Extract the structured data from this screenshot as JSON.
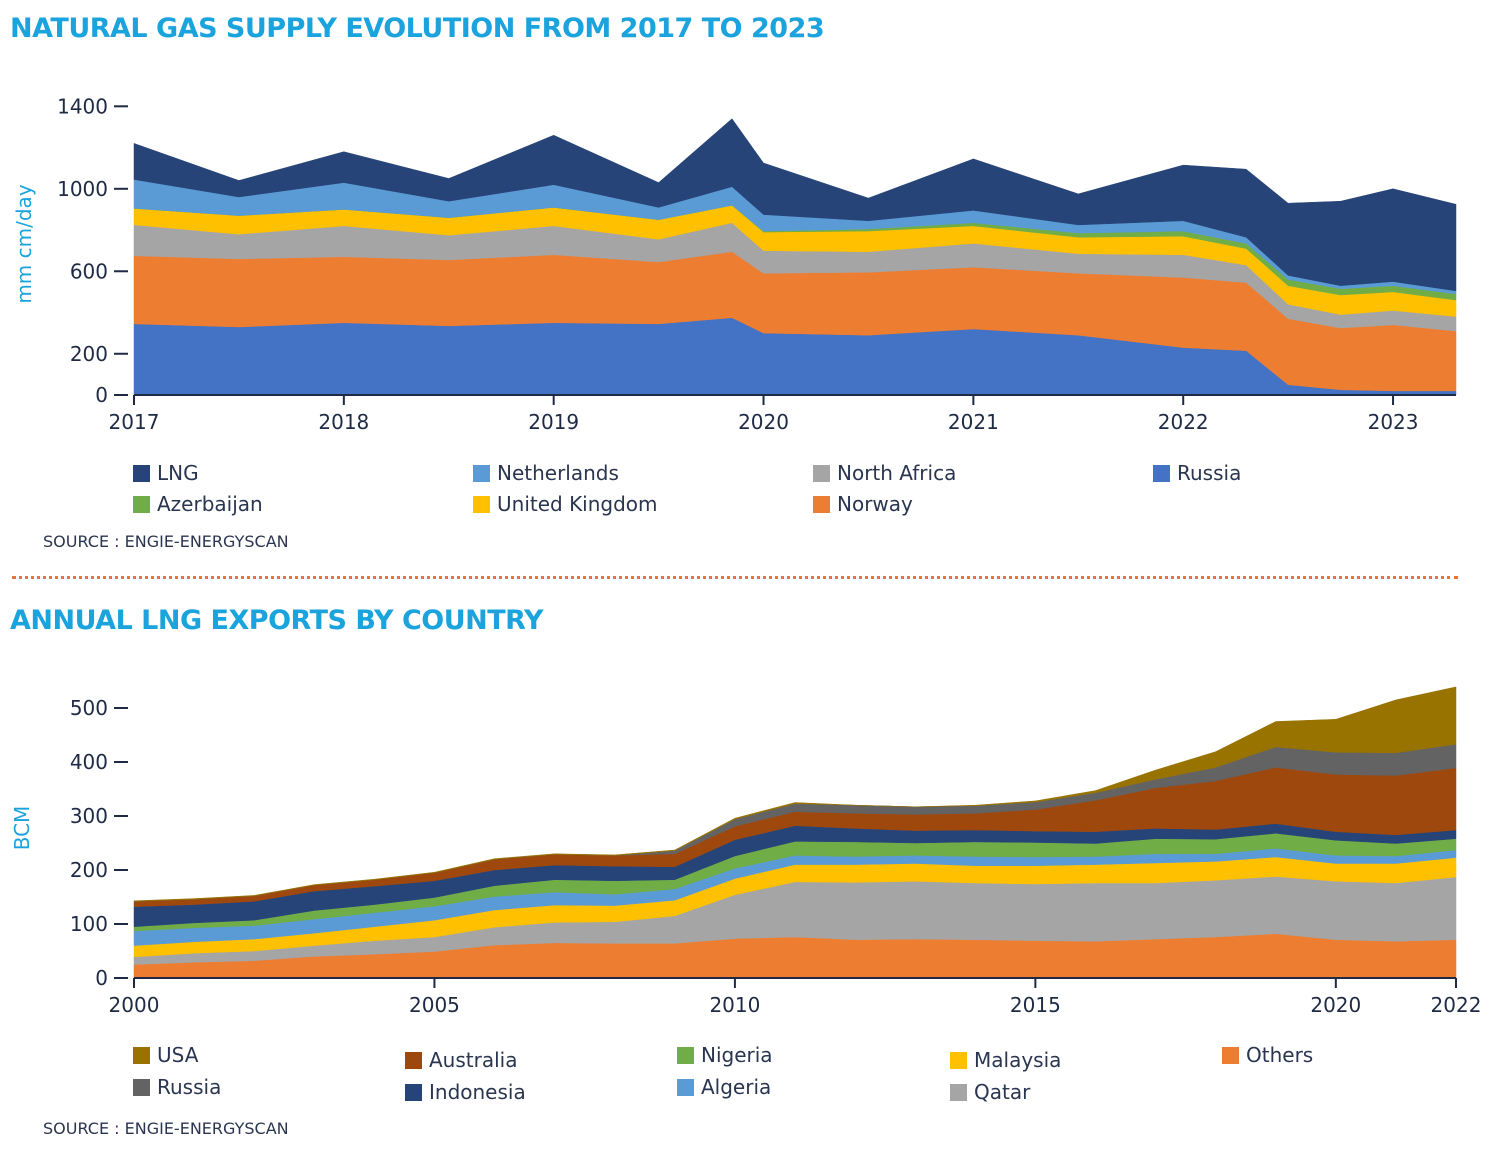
{
  "top": {
    "title": "NATURAL GAS SUPPLY EVOLUTION FROM 2017 TO 2023",
    "source": "SOURCE : ENGIE-ENERGYSCAN"
  },
  "bottom": {
    "title": "ANNUAL LNG EXPORTS BY COUNTRY",
    "source": "SOURCE : ENGIE-ENERGYSCAN"
  },
  "chart_data": [
    {
      "type": "area",
      "stacked": true,
      "title": "NATURAL GAS SUPPLY EVOLUTION FROM 2017 TO 2023",
      "ylabel": "mm cm/day",
      "xlabel": "",
      "xlim": [
        2017.0,
        2023.3
      ],
      "ylim": [
        0,
        1450
      ],
      "yticks": [
        "0",
        "200",
        "600",
        "1000",
        "1400"
      ],
      "xticks": [
        "2017",
        "2018",
        "2019",
        "2020",
        "2021",
        "2022",
        "2023"
      ],
      "grid": false,
      "legend_position": "bottom",
      "legend_order": [
        "LNG",
        "Netherlands",
        "North Africa",
        "Russia",
        "Azerbaijan",
        "United Kingdom",
        "Norway"
      ],
      "colors": {
        "Russia": "#4472c4",
        "Norway": "#ed7d31",
        "North Africa": "#a5a5a5",
        "United Kingdom": "#ffc000",
        "Azerbaijan": "#70ad47",
        "Netherlands": "#5b9bd5",
        "LNG": "#264478"
      },
      "x": [
        2017.0,
        2017.5,
        2018.0,
        2018.5,
        2019.0,
        2019.5,
        2019.85,
        2020.0,
        2020.5,
        2021.0,
        2021.5,
        2022.0,
        2022.3,
        2022.5,
        2022.75,
        2023.0,
        2023.3
      ],
      "series": [
        {
          "name": "Russia",
          "values": [
            345,
            330,
            350,
            335,
            350,
            345,
            375,
            300,
            290,
            320,
            290,
            230,
            215,
            50,
            25,
            20,
            20
          ]
        },
        {
          "name": "Norway",
          "values": [
            330,
            330,
            320,
            320,
            330,
            300,
            320,
            290,
            305,
            300,
            300,
            340,
            330,
            320,
            300,
            320,
            290
          ]
        },
        {
          "name": "North Africa",
          "values": [
            150,
            120,
            150,
            120,
            140,
            110,
            140,
            110,
            100,
            115,
            95,
            110,
            85,
            70,
            65,
            70,
            70
          ]
        },
        {
          "name": "United Kingdom",
          "values": [
            80,
            90,
            80,
            85,
            90,
            95,
            85,
            90,
            100,
            85,
            80,
            90,
            80,
            90,
            95,
            90,
            80
          ]
        },
        {
          "name": "Azerbaijan",
          "values": [
            0,
            0,
            0,
            0,
            0,
            0,
            0,
            5,
            10,
            15,
            20,
            25,
            25,
            30,
            30,
            30,
            30
          ]
        },
        {
          "name": "Netherlands",
          "values": [
            140,
            90,
            130,
            80,
            110,
            60,
            90,
            80,
            40,
            60,
            40,
            50,
            30,
            20,
            15,
            20,
            15
          ]
        },
        {
          "name": "LNG",
          "values": [
            175,
            80,
            150,
            110,
            240,
            120,
            330,
            250,
            110,
            250,
            150,
            270,
            330,
            350,
            410,
            450,
            420
          ]
        }
      ]
    },
    {
      "type": "area",
      "stacked": true,
      "title": "ANNUAL LNG EXPORTS BY COUNTRY",
      "ylabel": "BCM",
      "xlabel": "",
      "xlim": [
        2000,
        2022
      ],
      "ylim": [
        0,
        550
      ],
      "yticks": [
        "0",
        "100",
        "200",
        "300",
        "400",
        "500"
      ],
      "xticks": [
        "2000",
        "2005",
        "2010",
        "2015",
        "2020",
        "2022"
      ],
      "grid": false,
      "legend_position": "bottom",
      "legend_order": [
        "USA",
        "Russia",
        "Australia",
        "Indonesia",
        "Nigeria",
        "Algeria",
        "Malaysia",
        "Qatar",
        "Others"
      ],
      "colors": {
        "Others": "#ed7d31",
        "Qatar": "#a5a5a5",
        "Malaysia": "#ffc000",
        "Algeria": "#5b9bd5",
        "Nigeria": "#70ad47",
        "Indonesia": "#264478",
        "Australia": "#9e480e",
        "Russia": "#636363",
        "USA": "#997300"
      },
      "categories": [
        2000,
        2001,
        2002,
        2003,
        2004,
        2005,
        2006,
        2007,
        2008,
        2009,
        2010,
        2011,
        2012,
        2013,
        2014,
        2015,
        2016,
        2017,
        2018,
        2019,
        2020,
        2021,
        2022
      ],
      "series": [
        {
          "name": "Others",
          "values": [
            25,
            29,
            32,
            40,
            44,
            49,
            61,
            65,
            64,
            64,
            73,
            76,
            71,
            72,
            71,
            69,
            68,
            72,
            76,
            82,
            71,
            68,
            71
          ]
        },
        {
          "name": "Qatar",
          "values": [
            14,
            17,
            18,
            20,
            25,
            27,
            33,
            38,
            40,
            51,
            81,
            102,
            106,
            107,
            105,
            105,
            108,
            104,
            105,
            106,
            108,
            108,
            116
          ]
        },
        {
          "name": "Malaysia",
          "values": [
            21,
            21,
            22,
            23,
            26,
            31,
            32,
            32,
            30,
            29,
            30,
            32,
            33,
            33,
            32,
            34,
            34,
            37,
            35,
            36,
            33,
            36,
            36
          ]
        },
        {
          "name": "Algeria",
          "values": [
            27,
            26,
            25,
            26,
            26,
            26,
            25,
            24,
            21,
            21,
            19,
            17,
            15,
            15,
            17,
            16,
            15,
            17,
            14,
            16,
            15,
            14,
            14
          ]
        },
        {
          "name": "Nigeria",
          "values": [
            8,
            9,
            10,
            16,
            15,
            16,
            20,
            23,
            25,
            17,
            23,
            26,
            27,
            23,
            27,
            27,
            24,
            28,
            27,
            28,
            28,
            23,
            21
          ]
        },
        {
          "name": "Indonesia",
          "values": [
            37,
            34,
            35,
            36,
            34,
            31,
            29,
            27,
            27,
            24,
            30,
            29,
            25,
            23,
            22,
            21,
            22,
            19,
            18,
            18,
            16,
            16,
            16
          ]
        },
        {
          "name": "Australia",
          "values": [
            10,
            10,
            10,
            11,
            12,
            15,
            20,
            20,
            20,
            24,
            25,
            26,
            28,
            30,
            31,
            40,
            58,
            75,
            90,
            104,
            106,
            110,
            115
          ]
        },
        {
          "name": "Russia",
          "values": [
            0,
            0,
            0,
            0,
            0,
            0,
            0,
            0,
            0,
            6,
            13,
            15,
            15,
            14,
            14,
            14,
            14,
            16,
            25,
            38,
            41,
            42,
            44
          ]
        },
        {
          "name": "USA",
          "values": [
            1,
            1,
            1,
            1,
            1,
            1,
            1,
            1,
            1,
            1,
            2,
            2,
            0,
            0,
            1,
            2,
            4,
            17,
            29,
            47,
            61,
            98,
            106
          ]
        }
      ]
    }
  ]
}
